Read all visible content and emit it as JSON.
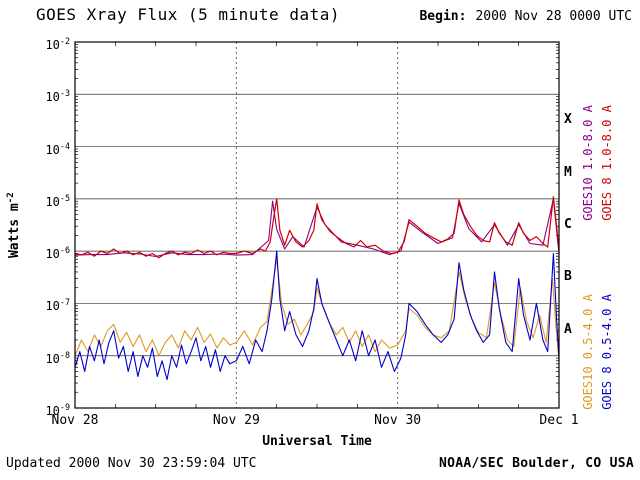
{
  "header": {
    "title": "GOES Xray Flux (5 minute data)",
    "begin_label": "Begin:",
    "begin_value": "2000 Nov 28 0000 UTC"
  },
  "footer": {
    "updated": "Updated 2000 Nov 30 23:59:04 UTC",
    "source": "NOAA/SEC Boulder, CO USA"
  },
  "chart_data": {
    "type": "line",
    "title": "GOES Xray Flux (5 minute data)",
    "xlabel": "Universal Time",
    "ylabel_text": "Watts m",
    "ylabel_sup": "-2",
    "y_scale": "log",
    "ylim": [
      1e-09,
      0.01
    ],
    "y_decades": [
      -2,
      -3,
      -4,
      -5,
      -6,
      -7,
      -8,
      -9
    ],
    "xlim_days": [
      0,
      3
    ],
    "x_ticks": [
      {
        "t": 0,
        "label": "Nov 28"
      },
      {
        "t": 1,
        "label": "Nov 29"
      },
      {
        "t": 2,
        "label": "Nov 30"
      },
      {
        "t": 3,
        "label": "Dec 1"
      }
    ],
    "day_lines": [
      1,
      2
    ],
    "grid": true,
    "flare_classes": [
      {
        "label": "X",
        "log_mid": -3.5
      },
      {
        "label": "M",
        "log_mid": -4.5
      },
      {
        "label": "C",
        "log_mid": -5.5
      },
      {
        "label": "B",
        "log_mid": -6.5
      },
      {
        "label": "A",
        "log_mid": -7.5
      }
    ],
    "series": [
      {
        "name": "GOES10 1.0-8.0 A",
        "color": "#880088",
        "width": 1.1,
        "points": [
          [
            0,
            8.4e-07
          ],
          [
            0.1,
            8.6e-07
          ],
          [
            0.2,
            8.6e-07
          ],
          [
            0.3,
            9.3e-07
          ],
          [
            0.4,
            8.8e-07
          ],
          [
            0.5,
            7.9e-07
          ],
          [
            0.6,
            9.3e-07
          ],
          [
            0.7,
            8.6e-07
          ],
          [
            0.8,
            8.6e-07
          ],
          [
            0.9,
            8.8e-07
          ],
          [
            1.0,
            8.4e-07
          ],
          [
            1.1,
            8.6e-07
          ],
          [
            1.2,
            1.6e-06
          ],
          [
            1.225,
            9e-06
          ],
          [
            1.25,
            2.6e-06
          ],
          [
            1.3,
            1.1e-06
          ],
          [
            1.35,
            1.9e-06
          ],
          [
            1.42,
            1.2e-06
          ],
          [
            1.5,
            7e-06
          ],
          [
            1.55,
            3.2e-06
          ],
          [
            1.65,
            1.5e-06
          ],
          [
            1.75,
            1.3e-06
          ],
          [
            1.85,
            1.1e-06
          ],
          [
            1.95,
            8.6e-07
          ],
          [
            2.02,
            1e-06
          ],
          [
            2.07,
            3.6e-06
          ],
          [
            2.15,
            2.3e-06
          ],
          [
            2.25,
            1.4e-06
          ],
          [
            2.34,
            1.8e-06
          ],
          [
            2.38,
            8.2e-06
          ],
          [
            2.44,
            2.7e-06
          ],
          [
            2.52,
            1.5e-06
          ],
          [
            2.6,
            3.2e-06
          ],
          [
            2.68,
            1.3e-06
          ],
          [
            2.75,
            3.2e-06
          ],
          [
            2.82,
            1.4e-06
          ],
          [
            2.9,
            1.3e-06
          ],
          [
            2.965,
            1e-05
          ],
          [
            3.0,
            9e-07
          ]
        ]
      },
      {
        "name": "GOES 8 1.0-8.0 A",
        "color": "#cc0000",
        "width": 1.2,
        "points": [
          [
            0,
            9e-07
          ],
          [
            0.04,
            8.5e-07
          ],
          [
            0.08,
            9.5e-07
          ],
          [
            0.12,
            8e-07
          ],
          [
            0.16,
            1e-06
          ],
          [
            0.2,
            9e-07
          ],
          [
            0.24,
            1.1e-06
          ],
          [
            0.28,
            9e-07
          ],
          [
            0.32,
            1e-06
          ],
          [
            0.36,
            8.5e-07
          ],
          [
            0.4,
            9.5e-07
          ],
          [
            0.44,
            8e-07
          ],
          [
            0.48,
            9e-07
          ],
          [
            0.52,
            7.5e-07
          ],
          [
            0.56,
            9e-07
          ],
          [
            0.6,
            1e-06
          ],
          [
            0.64,
            8.5e-07
          ],
          [
            0.68,
            9.5e-07
          ],
          [
            0.72,
            9e-07
          ],
          [
            0.76,
            1.05e-06
          ],
          [
            0.8,
            9e-07
          ],
          [
            0.84,
            1e-06
          ],
          [
            0.88,
            8.5e-07
          ],
          [
            0.92,
            9.5e-07
          ],
          [
            0.96,
            9e-07
          ],
          [
            1,
            9e-07
          ],
          [
            1.05,
            1e-06
          ],
          [
            1.1,
            9e-07
          ],
          [
            1.15,
            1.1e-06
          ],
          [
            1.18,
            1e-06
          ],
          [
            1.21,
            1.5e-06
          ],
          [
            1.23,
            4e-06
          ],
          [
            1.25,
            1e-05
          ],
          [
            1.27,
            2.5e-06
          ],
          [
            1.3,
            1.3e-06
          ],
          [
            1.33,
            2.5e-06
          ],
          [
            1.37,
            1.5e-06
          ],
          [
            1.41,
            1.2e-06
          ],
          [
            1.45,
            1.6e-06
          ],
          [
            1.48,
            2.5e-06
          ],
          [
            1.5,
            8e-06
          ],
          [
            1.53,
            4e-06
          ],
          [
            1.58,
            2.4e-06
          ],
          [
            1.63,
            1.8e-06
          ],
          [
            1.68,
            1.4e-06
          ],
          [
            1.73,
            1.2e-06
          ],
          [
            1.77,
            1.6e-06
          ],
          [
            1.81,
            1.2e-06
          ],
          [
            1.86,
            1.3e-06
          ],
          [
            1.91,
            1e-06
          ],
          [
            1.96,
            9e-07
          ],
          [
            2,
            9.5e-07
          ],
          [
            2.04,
            1.5e-06
          ],
          [
            2.07,
            4e-06
          ],
          [
            2.12,
            3e-06
          ],
          [
            2.17,
            2.2e-06
          ],
          [
            2.22,
            1.8e-06
          ],
          [
            2.27,
            1.5e-06
          ],
          [
            2.31,
            1.7e-06
          ],
          [
            2.35,
            2.2e-06
          ],
          [
            2.38,
            9.5e-06
          ],
          [
            2.41,
            5e-06
          ],
          [
            2.45,
            3e-06
          ],
          [
            2.49,
            2e-06
          ],
          [
            2.53,
            1.6e-06
          ],
          [
            2.57,
            1.5e-06
          ],
          [
            2.6,
            3.5e-06
          ],
          [
            2.63,
            2.2e-06
          ],
          [
            2.67,
            1.5e-06
          ],
          [
            2.71,
            1.3e-06
          ],
          [
            2.75,
            3.5e-06
          ],
          [
            2.78,
            2.2e-06
          ],
          [
            2.82,
            1.6e-06
          ],
          [
            2.86,
            1.9e-06
          ],
          [
            2.9,
            1.4e-06
          ],
          [
            2.93,
            1.2e-06
          ],
          [
            2.965,
            1.1e-05
          ],
          [
            2.985,
            3e-06
          ],
          [
            3,
            1e-06
          ]
        ]
      },
      {
        "name": "GOES10 0.5-4.0 A",
        "color": "#dd9922",
        "width": 1.1,
        "points": [
          [
            0,
            1e-08
          ],
          [
            0.04,
            2e-08
          ],
          [
            0.08,
            1.2e-08
          ],
          [
            0.12,
            2.5e-08
          ],
          [
            0.16,
            1.5e-08
          ],
          [
            0.2,
            3e-08
          ],
          [
            0.24,
            4e-08
          ],
          [
            0.28,
            1.8e-08
          ],
          [
            0.32,
            2.8e-08
          ],
          [
            0.36,
            1.5e-08
          ],
          [
            0.4,
            2.5e-08
          ],
          [
            0.44,
            1.2e-08
          ],
          [
            0.48,
            2e-08
          ],
          [
            0.52,
            1e-08
          ],
          [
            0.56,
            1.8e-08
          ],
          [
            0.6,
            2.5e-08
          ],
          [
            0.64,
            1.4e-08
          ],
          [
            0.68,
            3e-08
          ],
          [
            0.72,
            2e-08
          ],
          [
            0.76,
            3.5e-08
          ],
          [
            0.8,
            1.8e-08
          ],
          [
            0.84,
            2.6e-08
          ],
          [
            0.88,
            1.4e-08
          ],
          [
            0.92,
            2.2e-08
          ],
          [
            0.96,
            1.6e-08
          ],
          [
            1,
            1.8e-08
          ],
          [
            1.05,
            3e-08
          ],
          [
            1.1,
            1.6e-08
          ],
          [
            1.15,
            3.5e-08
          ],
          [
            1.19,
            4.5e-08
          ],
          [
            1.25,
            7e-07
          ],
          [
            1.28,
            1e-07
          ],
          [
            1.32,
            4e-08
          ],
          [
            1.36,
            5e-08
          ],
          [
            1.4,
            2.5e-08
          ],
          [
            1.44,
            4e-08
          ],
          [
            1.48,
            7e-08
          ],
          [
            1.5,
            2e-07
          ],
          [
            1.54,
            8e-08
          ],
          [
            1.58,
            4e-08
          ],
          [
            1.62,
            2.5e-08
          ],
          [
            1.66,
            3.5e-08
          ],
          [
            1.7,
            1.8e-08
          ],
          [
            1.74,
            3e-08
          ],
          [
            1.78,
            1.5e-08
          ],
          [
            1.82,
            2.5e-08
          ],
          [
            1.86,
            1.2e-08
          ],
          [
            1.9,
            2e-08
          ],
          [
            1.95,
            1.4e-08
          ],
          [
            2,
            1.6e-08
          ],
          [
            2.05,
            3e-08
          ],
          [
            2.07,
            8e-08
          ],
          [
            2.12,
            6e-08
          ],
          [
            2.17,
            3.5e-08
          ],
          [
            2.22,
            2.5e-08
          ],
          [
            2.27,
            2.2e-08
          ],
          [
            2.32,
            3e-08
          ],
          [
            2.38,
            4e-07
          ],
          [
            2.42,
            1.2e-07
          ],
          [
            2.46,
            5e-08
          ],
          [
            2.5,
            2.8e-08
          ],
          [
            2.55,
            2.2e-08
          ],
          [
            2.6,
            2.5e-07
          ],
          [
            2.64,
            6e-08
          ],
          [
            2.68,
            2e-08
          ],
          [
            2.72,
            1.5e-08
          ],
          [
            2.76,
            2e-07
          ],
          [
            2.8,
            4.5e-08
          ],
          [
            2.84,
            2.2e-08
          ],
          [
            2.88,
            6e-08
          ],
          [
            2.92,
            1.8e-08
          ],
          [
            2.96,
            3e-07
          ],
          [
            2.98,
            4e-08
          ],
          [
            3,
            8e-09
          ]
        ]
      },
      {
        "name": "GOES 8 0.5-4.0 A",
        "color": "#0000cc",
        "width": 1.1,
        "points": [
          [
            0,
            6e-09
          ],
          [
            0.03,
            1.2e-08
          ],
          [
            0.06,
            5e-09
          ],
          [
            0.09,
            1.5e-08
          ],
          [
            0.12,
            8e-09
          ],
          [
            0.15,
            2e-08
          ],
          [
            0.18,
            7e-09
          ],
          [
            0.21,
            1.8e-08
          ],
          [
            0.24,
            3e-08
          ],
          [
            0.27,
            9e-09
          ],
          [
            0.3,
            1.5e-08
          ],
          [
            0.33,
            5e-09
          ],
          [
            0.36,
            1.2e-08
          ],
          [
            0.39,
            4e-09
          ],
          [
            0.42,
            1e-08
          ],
          [
            0.45,
            6e-09
          ],
          [
            0.48,
            1.4e-08
          ],
          [
            0.51,
            4e-09
          ],
          [
            0.54,
            8e-09
          ],
          [
            0.57,
            3.5e-09
          ],
          [
            0.6,
            1e-08
          ],
          [
            0.63,
            6e-09
          ],
          [
            0.66,
            1.6e-08
          ],
          [
            0.69,
            7e-09
          ],
          [
            0.72,
            1.2e-08
          ],
          [
            0.75,
            2.2e-08
          ],
          [
            0.78,
            8e-09
          ],
          [
            0.81,
            1.5e-08
          ],
          [
            0.84,
            6e-09
          ],
          [
            0.87,
            1.3e-08
          ],
          [
            0.9,
            5e-09
          ],
          [
            0.93,
            1e-08
          ],
          [
            0.96,
            7e-09
          ],
          [
            1,
            8e-09
          ],
          [
            1.04,
            1.5e-08
          ],
          [
            1.08,
            7e-09
          ],
          [
            1.12,
            2e-08
          ],
          [
            1.16,
            1.2e-08
          ],
          [
            1.19,
            3e-08
          ],
          [
            1.22,
            1.2e-07
          ],
          [
            1.25,
            1e-06
          ],
          [
            1.27,
            1.2e-07
          ],
          [
            1.3,
            3e-08
          ],
          [
            1.33,
            7e-08
          ],
          [
            1.37,
            2.5e-08
          ],
          [
            1.41,
            1.5e-08
          ],
          [
            1.45,
            3e-08
          ],
          [
            1.48,
            8e-08
          ],
          [
            1.5,
            3e-07
          ],
          [
            1.53,
            1e-07
          ],
          [
            1.58,
            4e-08
          ],
          [
            1.62,
            2e-08
          ],
          [
            1.66,
            1e-08
          ],
          [
            1.7,
            2e-08
          ],
          [
            1.74,
            8e-09
          ],
          [
            1.78,
            3e-08
          ],
          [
            1.82,
            1e-08
          ],
          [
            1.86,
            2e-08
          ],
          [
            1.9,
            6e-09
          ],
          [
            1.94,
            1.2e-08
          ],
          [
            1.98,
            5e-09
          ],
          [
            2.02,
            9e-09
          ],
          [
            2.05,
            2.5e-08
          ],
          [
            2.07,
            1e-07
          ],
          [
            2.12,
            7e-08
          ],
          [
            2.17,
            4e-08
          ],
          [
            2.22,
            2.5e-08
          ],
          [
            2.27,
            1.8e-08
          ],
          [
            2.31,
            2.5e-08
          ],
          [
            2.35,
            5e-08
          ],
          [
            2.38,
            6e-07
          ],
          [
            2.41,
            1.8e-07
          ],
          [
            2.45,
            6e-08
          ],
          [
            2.49,
            3e-08
          ],
          [
            2.53,
            1.8e-08
          ],
          [
            2.57,
            2.5e-08
          ],
          [
            2.6,
            4e-07
          ],
          [
            2.63,
            8e-08
          ],
          [
            2.67,
            1.8e-08
          ],
          [
            2.71,
            1.2e-08
          ],
          [
            2.75,
            3e-07
          ],
          [
            2.78,
            6e-08
          ],
          [
            2.82,
            2e-08
          ],
          [
            2.86,
            1e-07
          ],
          [
            2.9,
            2e-08
          ],
          [
            2.93,
            1.2e-08
          ],
          [
            2.965,
            9e-07
          ],
          [
            2.985,
            5e-08
          ],
          [
            3,
            9e-09
          ]
        ]
      }
    ]
  },
  "colors": {
    "grid": "#333333",
    "day_line": "#555555",
    "frame": "#000000"
  }
}
